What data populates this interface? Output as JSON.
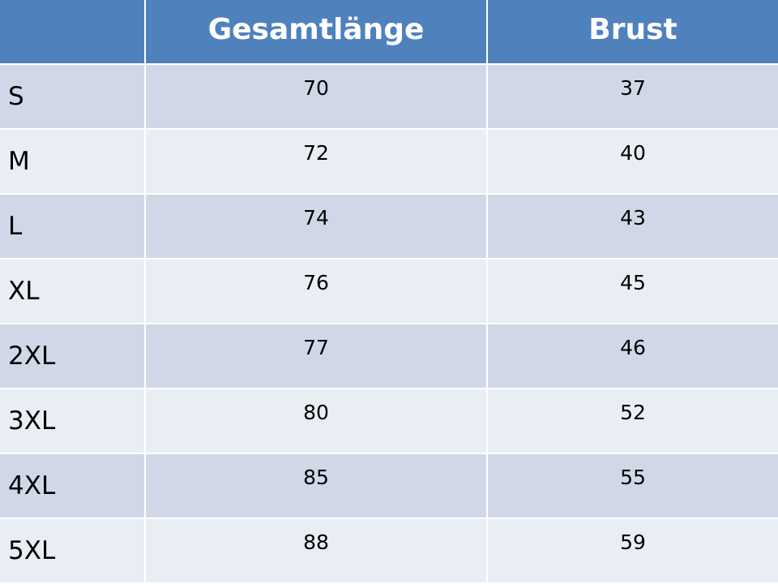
{
  "table": {
    "header": [
      "Gesamtlänge",
      "Brust"
    ],
    "rows": [
      [
        "S",
        70,
        37
      ],
      [
        "M",
        72,
        40
      ],
      [
        "L",
        74,
        43
      ],
      [
        "XL",
        76,
        45
      ],
      [
        "2XL",
        77,
        46
      ],
      [
        "3XL",
        80,
        52
      ],
      [
        "4XL",
        85,
        55
      ],
      [
        "5XL",
        88,
        59
      ]
    ]
  }
}
